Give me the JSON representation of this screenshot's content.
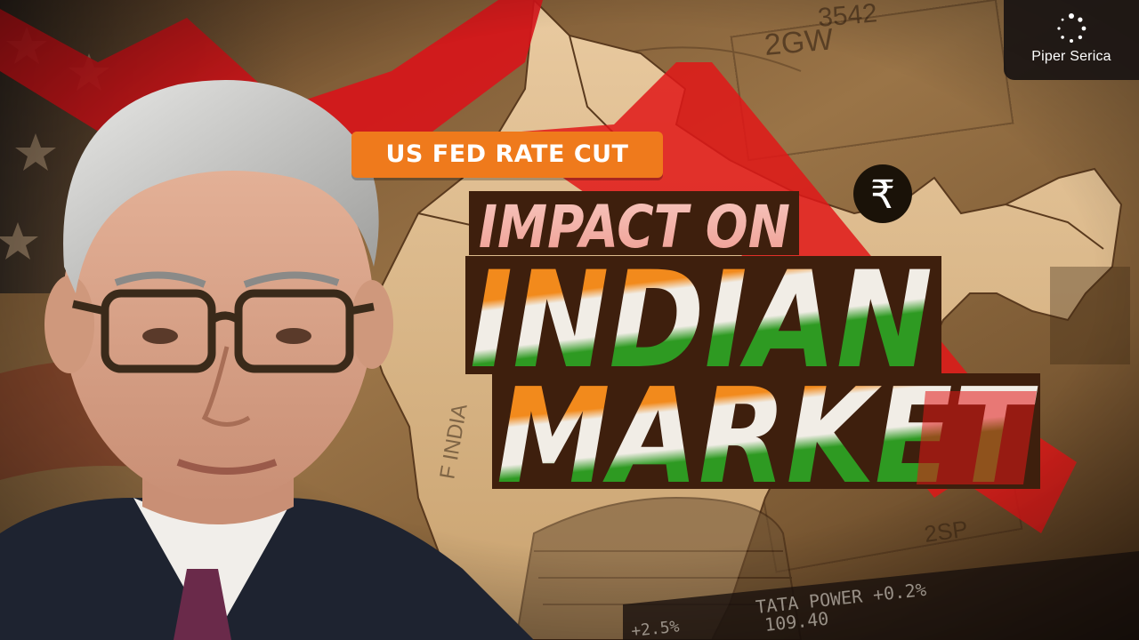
{
  "brand": {
    "name": "Piper Serica",
    "logo_icon": "dotted-ring-logo"
  },
  "tag": "US FED RATE CUT",
  "headline": {
    "line1": "IMPACT ON",
    "line2": "INDIAN",
    "line3": "MARKET"
  },
  "currency_symbol": "₹",
  "background_text": {
    "banknote_serial": "2GW 3542",
    "banknote_serial_2": "2SP",
    "india_note": "F INDIA",
    "ticker_1": "TATA POWER +0.2%",
    "ticker_1_price": "109.40",
    "ticker_2": "+2.5%"
  },
  "colors": {
    "saffron": "#f28a1c",
    "india_green": "#2e9a22",
    "down_arrow_red": "#e01818",
    "pill_orange": "#ef7a1c",
    "panel_brown": "#3e1f0d"
  }
}
